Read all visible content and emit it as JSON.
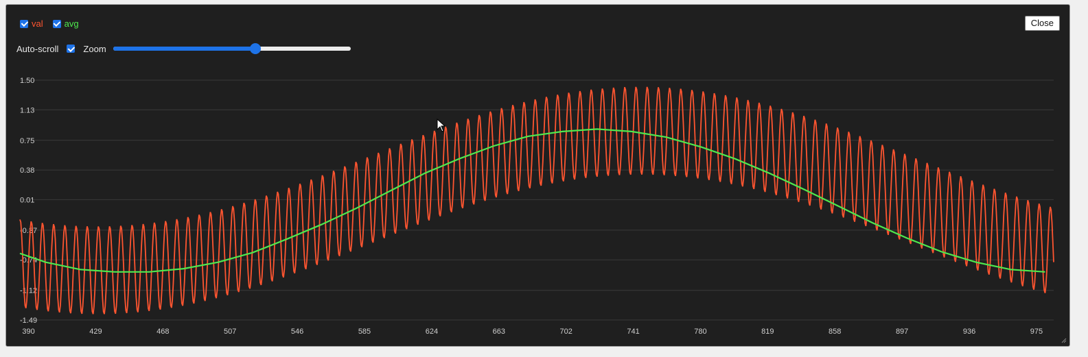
{
  "legend": {
    "val_label": "val",
    "avg_label": "avg",
    "val_checked": true,
    "avg_checked": true
  },
  "controls": {
    "autoscroll_label": "Auto-scroll",
    "autoscroll_checked": true,
    "zoom_label": "Zoom",
    "zoom_value": 0.6
  },
  "close_label": "Close",
  "colors": {
    "val": "#ff5530",
    "avg": "#4ee94e",
    "background": "#1f1f1f",
    "accent": "#1e73e8"
  },
  "chart_data": {
    "type": "line",
    "xlim": [
      385,
      985
    ],
    "ylim": [
      -1.49,
      1.5
    ],
    "y_ticks": [
      "1.50",
      "1.13",
      "0.75",
      "0.38",
      "0.01",
      "-0.37",
      "-0.74",
      "-1.12",
      "-1.49"
    ],
    "x_ticks": [
      "390",
      "429",
      "468",
      "507",
      "546",
      "585",
      "624",
      "663",
      "702",
      "741",
      "780",
      "819",
      "858",
      "897",
      "936",
      "975"
    ],
    "grid": true,
    "series": [
      {
        "name": "val",
        "description_of_shape": "oscillating signal: slow sinusoid (period ~630 samples, amplitude ~0.87, min near x=440, max near x=715) plus fast oscillation of amplitude ~0.55 with period ~6.5 samples",
        "base_amplitude": 0.87,
        "base_period": 630,
        "base_min_x": 430,
        "fast_amplitude": 0.55,
        "fast_period": 6.5
      },
      {
        "name": "avg",
        "points": [
          [
            385,
            -0.66
          ],
          [
            400,
            -0.77
          ],
          [
            420,
            -0.86
          ],
          [
            440,
            -0.89
          ],
          [
            460,
            -0.89
          ],
          [
            480,
            -0.85
          ],
          [
            500,
            -0.77
          ],
          [
            520,
            -0.65
          ],
          [
            540,
            -0.48
          ],
          [
            560,
            -0.3
          ],
          [
            580,
            -0.1
          ],
          [
            600,
            0.12
          ],
          [
            620,
            0.34
          ],
          [
            640,
            0.52
          ],
          [
            660,
            0.68
          ],
          [
            680,
            0.8
          ],
          [
            700,
            0.86
          ],
          [
            720,
            0.89
          ],
          [
            740,
            0.86
          ],
          [
            760,
            0.79
          ],
          [
            780,
            0.67
          ],
          [
            800,
            0.52
          ],
          [
            820,
            0.34
          ],
          [
            840,
            0.14
          ],
          [
            860,
            -0.07
          ],
          [
            880,
            -0.28
          ],
          [
            900,
            -0.47
          ],
          [
            920,
            -0.64
          ],
          [
            940,
            -0.77
          ],
          [
            960,
            -0.86
          ],
          [
            980,
            -0.89
          ]
        ]
      }
    ]
  }
}
